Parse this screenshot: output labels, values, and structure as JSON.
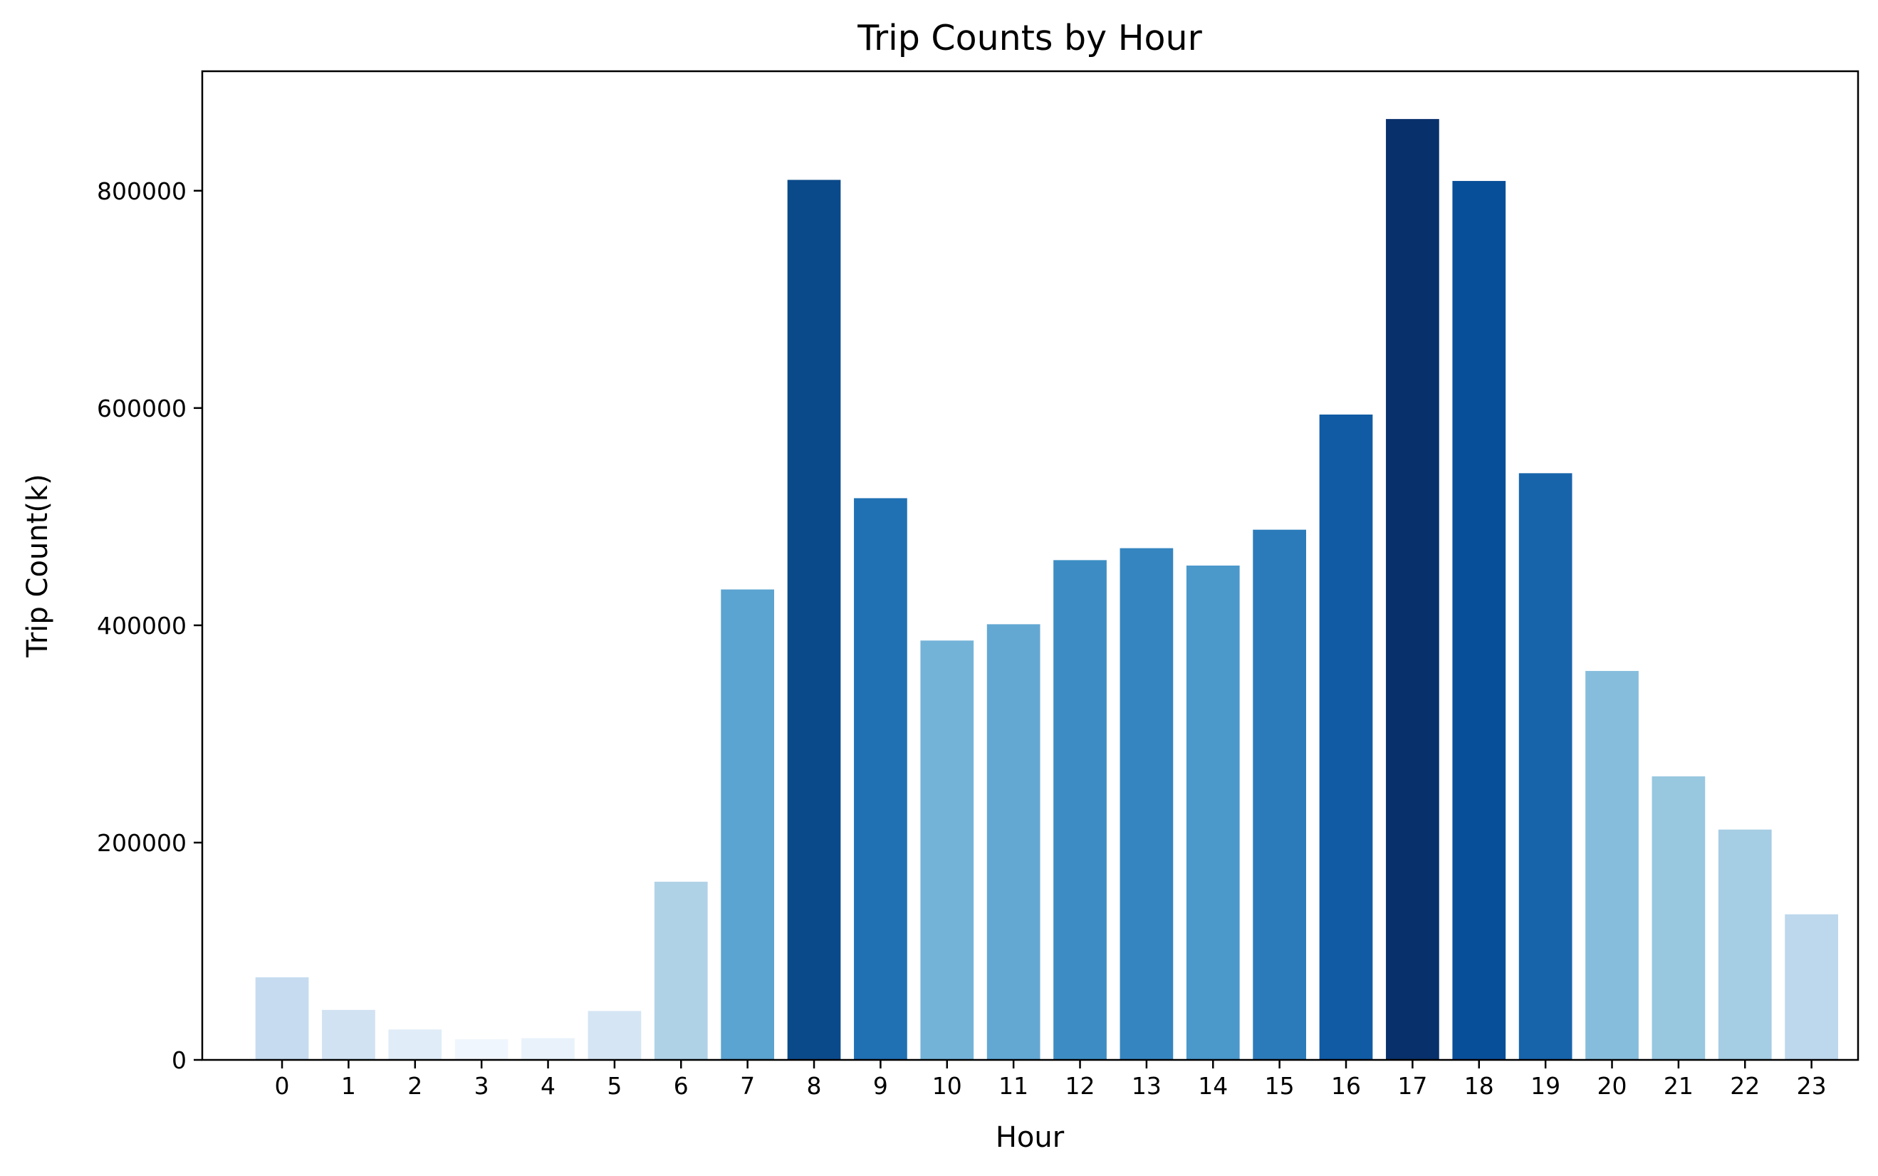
{
  "chart_data": {
    "type": "bar",
    "title": "Trip Counts by Hour",
    "xlabel": "Hour",
    "ylabel": "Trip Count(k)",
    "categories": [
      "0",
      "1",
      "2",
      "3",
      "4",
      "5",
      "6",
      "7",
      "8",
      "9",
      "10",
      "11",
      "12",
      "13",
      "14",
      "15",
      "16",
      "17",
      "18",
      "19",
      "20",
      "21",
      "22",
      "23"
    ],
    "values": [
      76000,
      46000,
      28000,
      19000,
      20000,
      45000,
      164000,
      433000,
      810000,
      517000,
      386000,
      401000,
      460000,
      471000,
      455000,
      488000,
      594000,
      866000,
      809000,
      540000,
      358000,
      261000,
      212000,
      134000
    ],
    "colors": [
      "#c6dbef",
      "#d1e2f3",
      "#e0ecf8",
      "#f0f6fd",
      "#e9f2fb",
      "#d5e5f4",
      "#b0d2e7",
      "#5ba3d0",
      "#0b4a8a",
      "#2070b4",
      "#74b3d8",
      "#63a8d3",
      "#3d8dc4",
      "#3585c0",
      "#4b98ca",
      "#2b7bba",
      "#105ba4",
      "#08306b",
      "#084f99",
      "#1764ab",
      "#87bddc",
      "#98c7e0",
      "#a5cde3",
      "#bdd7ec"
    ],
    "ylim": [
      0,
      910000
    ],
    "yticks": [
      0,
      200000,
      400000,
      600000,
      800000
    ],
    "ytick_labels": [
      "0",
      "200000",
      "400000",
      "600000",
      "800000"
    ],
    "grid": false,
    "legend": "none"
  }
}
